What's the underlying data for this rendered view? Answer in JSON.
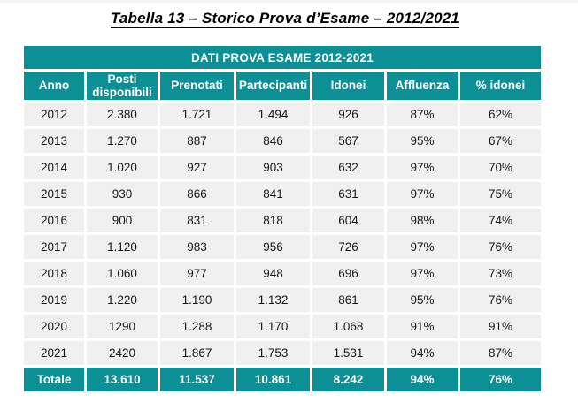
{
  "page": {
    "title": "Tabella 13 – Storico Prova d’Esame – 2012/2021"
  },
  "table": {
    "banner": "DATI PROVA ESAME 2012-2021",
    "columns": [
      "Anno",
      "Posti disponibili",
      "Prenotati",
      "Partecipanti",
      "Idonei",
      "Affluenza",
      "% idonei"
    ],
    "rows": [
      [
        "2012",
        "2.380",
        "1.721",
        "1.494",
        "926",
        "87%",
        "62%"
      ],
      [
        "2013",
        "1.270",
        "887",
        "846",
        "567",
        "95%",
        "67%"
      ],
      [
        "2014",
        "1.020",
        "927",
        "903",
        "632",
        "97%",
        "70%"
      ],
      [
        "2015",
        "930",
        "866",
        "841",
        "631",
        "97%",
        "75%"
      ],
      [
        "2016",
        "900",
        "831",
        "818",
        "604",
        "98%",
        "74%"
      ],
      [
        "2017",
        "1.120",
        "983",
        "956",
        "726",
        "97%",
        "76%"
      ],
      [
        "2018",
        "1.060",
        "977",
        "948",
        "696",
        "97%",
        "73%"
      ],
      [
        "2019",
        "1.220",
        "1.190",
        "1.132",
        "861",
        "95%",
        "76%"
      ],
      [
        "2020",
        "1290",
        "1.288",
        "1.170",
        "1.068",
        "91%",
        "91%"
      ],
      [
        "2021",
        "2420",
        "1.867",
        "1.753",
        "1.531",
        "94%",
        "87%"
      ]
    ],
    "total_row": [
      "Totale",
      "13.610",
      "11.537",
      "10.861",
      "8.242",
      "94%",
      "76%"
    ]
  },
  "colors": {
    "accent_teal": "#0d8f96",
    "row_background": "#f0f0f0"
  }
}
